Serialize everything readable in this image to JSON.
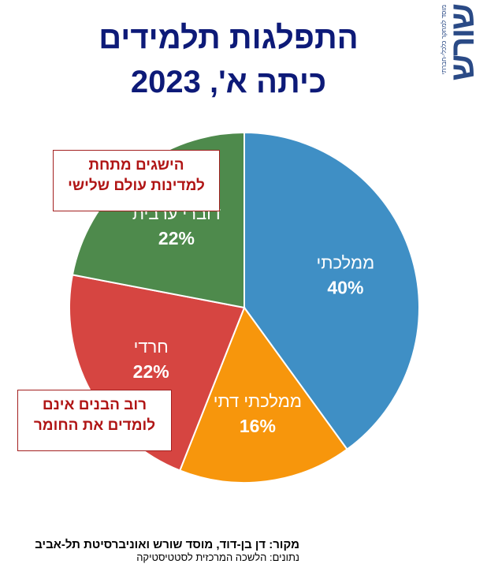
{
  "chart_data": {
    "type": "pie",
    "title": "התפלגות תלמידים",
    "subtitle": "כיתה א', 2023",
    "slices": [
      {
        "label": "ממלכתי",
        "value": 40,
        "display": "40%",
        "color": "#3f8fc5"
      },
      {
        "label": "ממלכתי דתי",
        "value": 16,
        "display": "16%",
        "color": "#f7960c"
      },
      {
        "label": "חרדי",
        "value": 22,
        "display": "22%",
        "color": "#d64541"
      },
      {
        "label": "דוברי ערבית",
        "value": 22,
        "display": "22%",
        "color": "#4e8a4c"
      }
    ],
    "start_angle_deg": 0,
    "direction": "clockwise"
  },
  "callouts": {
    "arabic": {
      "line1": "הישגים מתחת",
      "line2": "למדינות עולם שלישי"
    },
    "haredi": {
      "line1": "רוב הבנים אינם",
      "line2": "לומדים את החומר"
    }
  },
  "footer": {
    "source": "מקור:  דן בן-דוד, מוסד שורש ואוניברסיטת תל-אביב",
    "data": "נתונים: הלשכה המרכזית לסטטיסטיקה"
  },
  "logo": {
    "name": "שורש",
    "tagline": "מוסד למחקר כלכלי-חברתי"
  }
}
